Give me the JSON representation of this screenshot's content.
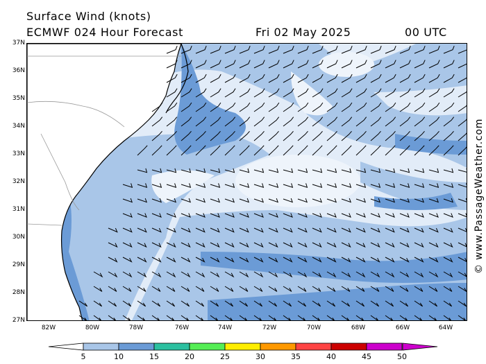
{
  "header": {
    "title": "Surface Wind (knots)",
    "model": "ECMWF 024 Hour Forecast",
    "date": "Fri 02 May 2025",
    "time": "00 UTC"
  },
  "credit": "© www.PassageWeather.com",
  "lat_labels": [
    "37N",
    "36N",
    "35N",
    "34N",
    "33N",
    "32N",
    "31N",
    "30N",
    "29N",
    "28N",
    "27N"
  ],
  "lon_labels": [
    "82W",
    "80W",
    "78W",
    "76W",
    "74W",
    "72W",
    "70W",
    "68W",
    "66W",
    "64W"
  ],
  "legend": {
    "values": [
      "5",
      "10",
      "15",
      "20",
      "25",
      "30",
      "35",
      "40",
      "45",
      "50"
    ],
    "colors": [
      "#e2ecf8",
      "#a9c6e8",
      "#6b9bd6",
      "#2cc0a0",
      "#55ee55",
      "#ffee00",
      "#ff9900",
      "#ff4444",
      "#cc0000",
      "#cc00cc"
    ]
  },
  "colors": {
    "land": "#ffffff",
    "calm": "#e2ecf8",
    "moderate": "#a9c6e8",
    "fresh": "#6b9bd6"
  }
}
